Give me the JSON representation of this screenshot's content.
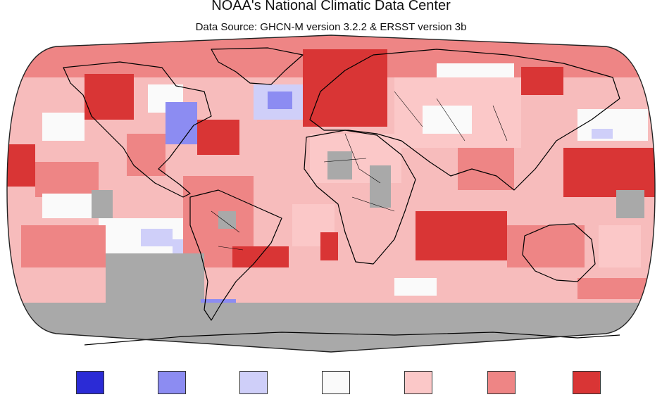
{
  "header": {
    "title": "NOAA's National Climatic Data Center",
    "subtitle": "Data Source: GHCN-M version 3.2.2 & ERSST version 3b"
  },
  "map": {
    "projection": "robinson",
    "missing_color": "#a9a9a9",
    "coastline_color": "#000000"
  },
  "legend": {
    "colors": [
      "#2b2bd6",
      "#8c8cf2",
      "#cfcff9",
      "#fafafa",
      "#fbc8c8",
      "#ee8585",
      "#d93535"
    ]
  }
}
